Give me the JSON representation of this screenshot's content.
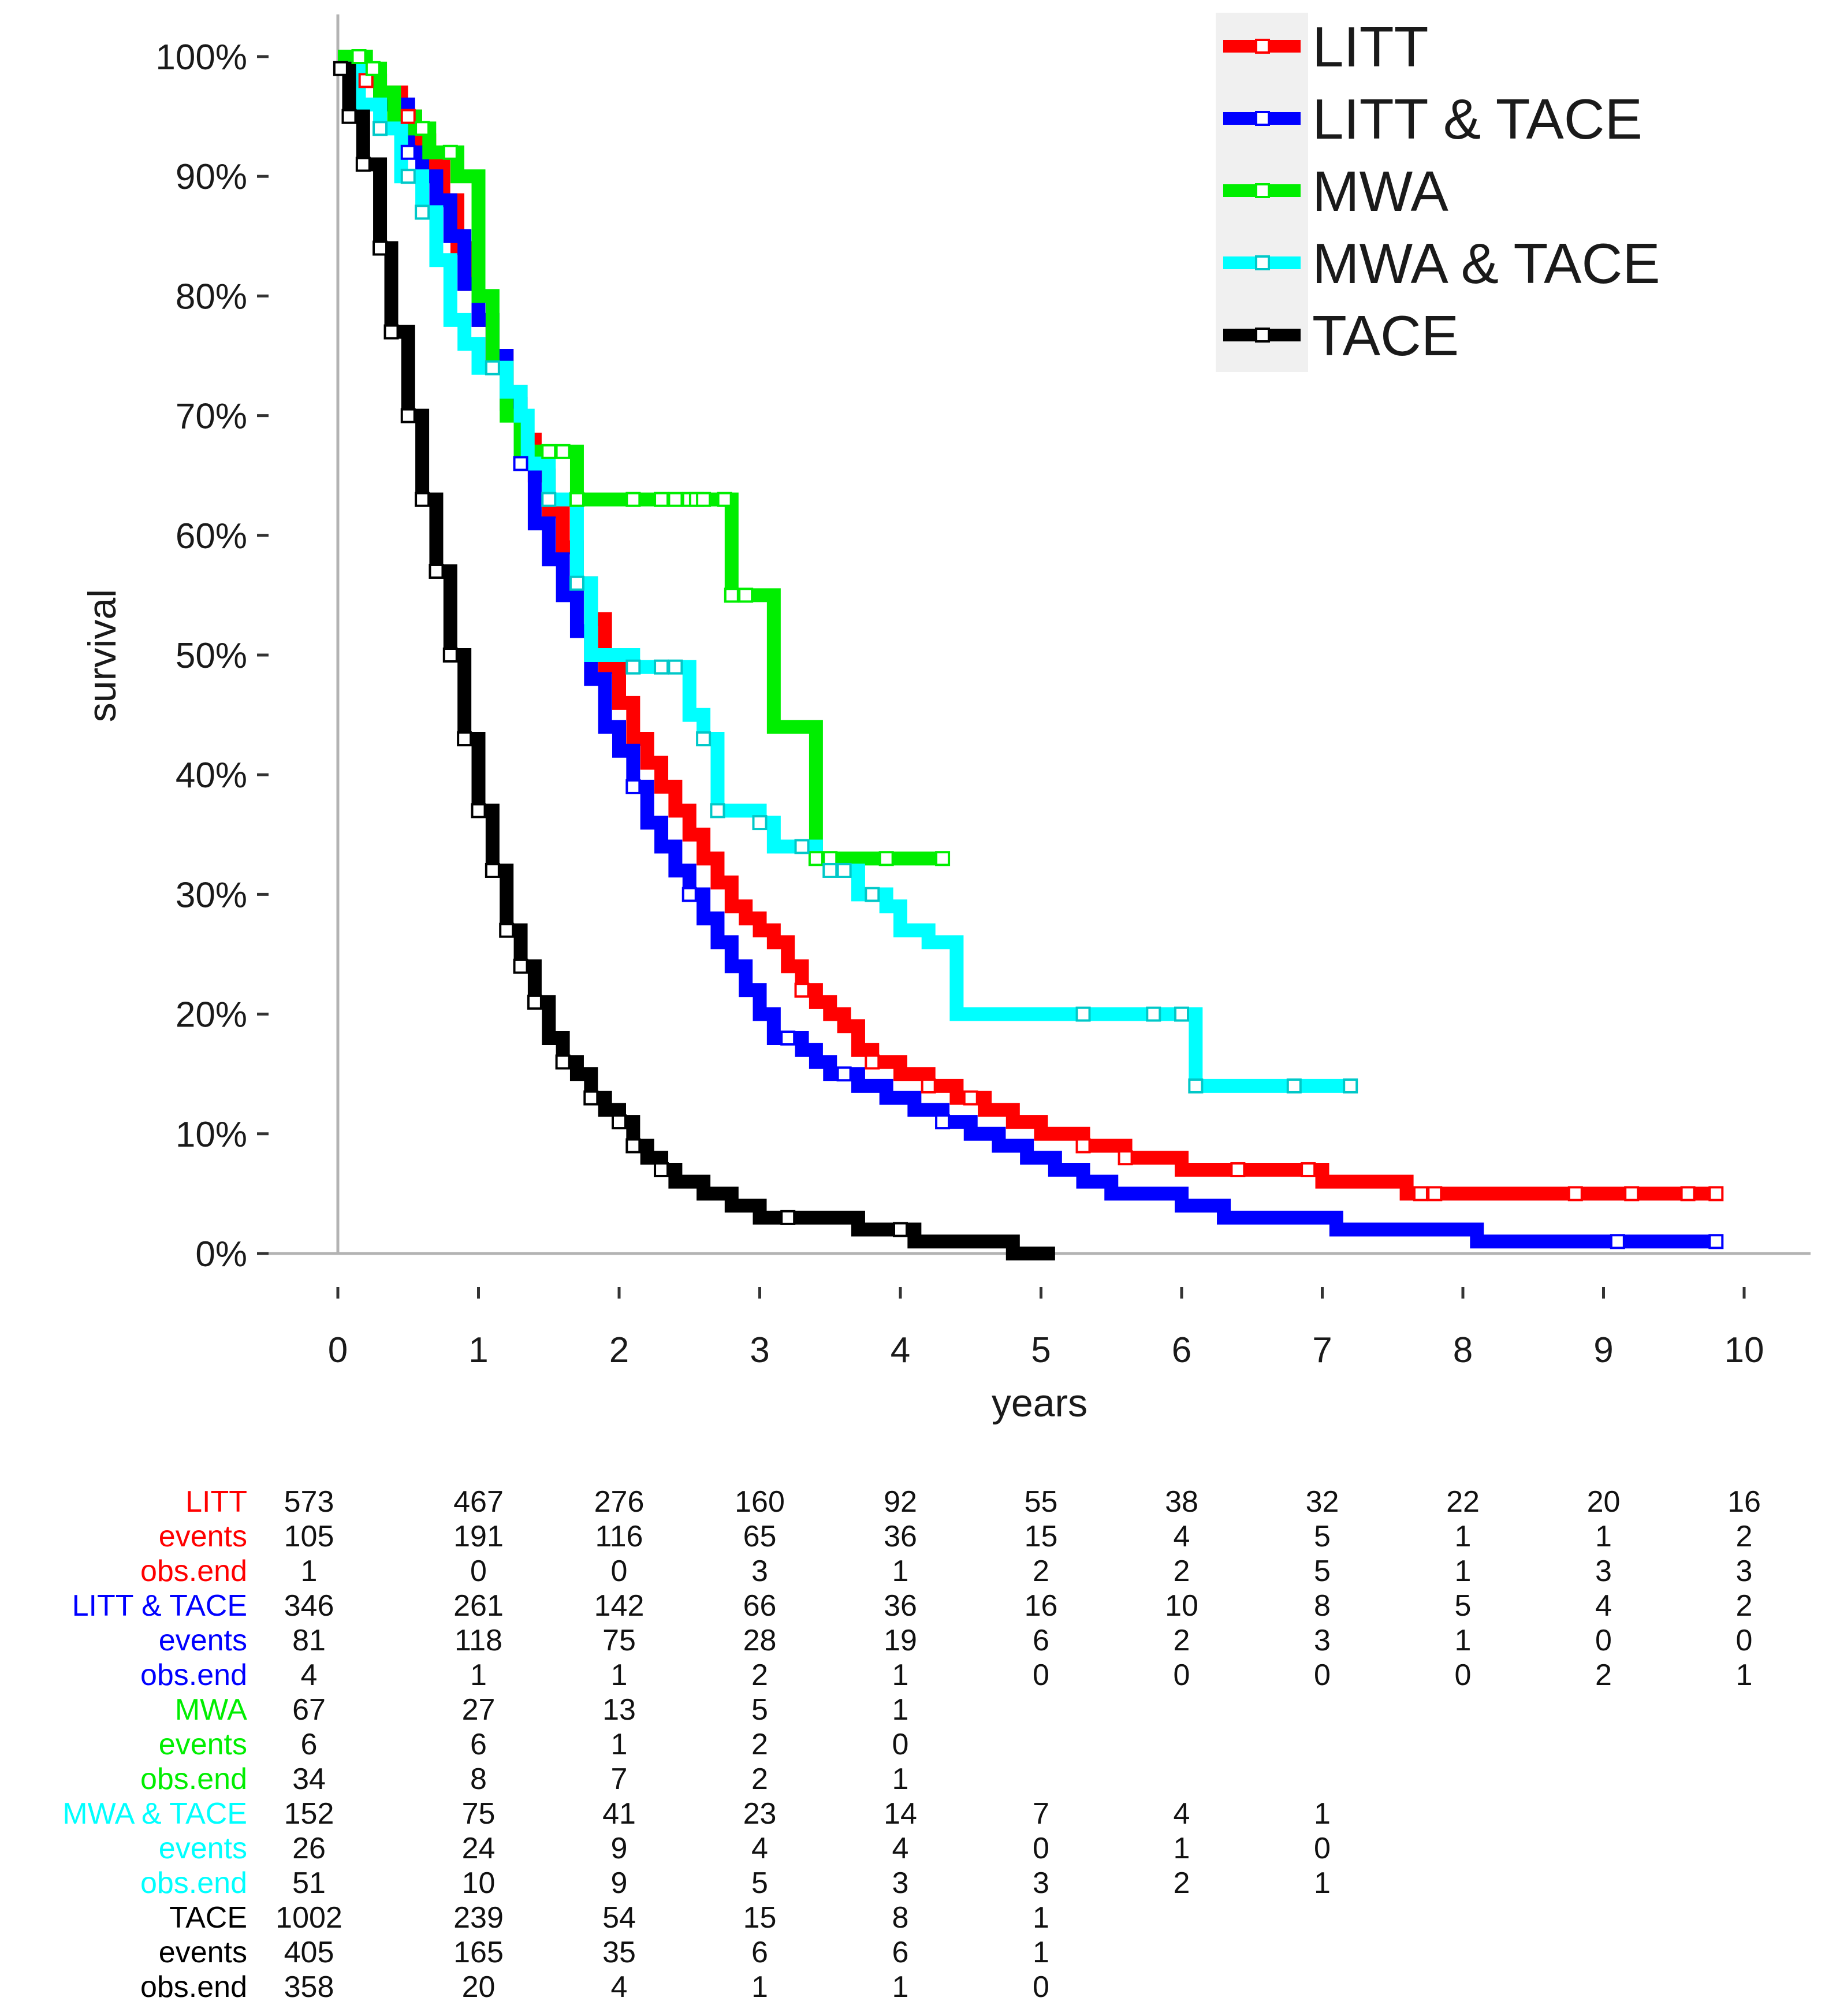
{
  "chart_data": {
    "type": "line",
    "subtype": "kaplan-meier step curves",
    "xlabel": "years",
    "ylabel": "survival",
    "xlim": [
      0,
      10
    ],
    "ylim": [
      0,
      100
    ],
    "x_ticks": [
      "0",
      "1",
      "2",
      "3",
      "4",
      "5",
      "6",
      "7",
      "8",
      "9",
      "10"
    ],
    "y_ticks": [
      "0%",
      "10%",
      "20%",
      "30%",
      "40%",
      "50%",
      "60%",
      "70%",
      "80%",
      "90%",
      "100%"
    ],
    "legend": {
      "position": "top-right",
      "entries": [
        "LITT",
        "LITT & TACE",
        "MWA",
        "MWA & TACE",
        "TACE"
      ]
    },
    "series": [
      {
        "name": "LITT",
        "color": "#ff0000",
        "steps": [
          [
            0,
            100
          ],
          [
            0.05,
            99
          ],
          [
            0.15,
            98
          ],
          [
            0.3,
            97
          ],
          [
            0.45,
            95
          ],
          [
            0.55,
            93
          ],
          [
            0.65,
            91
          ],
          [
            0.75,
            88
          ],
          [
            0.85,
            84
          ],
          [
            0.92,
            81
          ],
          [
            1.0,
            78
          ],
          [
            1.1,
            75
          ],
          [
            1.2,
            72
          ],
          [
            1.3,
            68
          ],
          [
            1.4,
            65
          ],
          [
            1.5,
            62
          ],
          [
            1.6,
            59
          ],
          [
            1.7,
            56
          ],
          [
            1.8,
            53
          ],
          [
            1.9,
            49
          ],
          [
            2.0,
            46
          ],
          [
            2.1,
            43
          ],
          [
            2.2,
            41
          ],
          [
            2.3,
            39
          ],
          [
            2.4,
            37
          ],
          [
            2.5,
            35
          ],
          [
            2.6,
            33
          ],
          [
            2.7,
            31
          ],
          [
            2.8,
            29
          ],
          [
            2.9,
            28
          ],
          [
            3.0,
            27
          ],
          [
            3.1,
            26
          ],
          [
            3.2,
            24
          ],
          [
            3.3,
            22
          ],
          [
            3.4,
            21
          ],
          [
            3.5,
            20
          ],
          [
            3.6,
            19
          ],
          [
            3.7,
            17
          ],
          [
            3.8,
            16
          ],
          [
            4.0,
            15
          ],
          [
            4.2,
            14
          ],
          [
            4.4,
            13
          ],
          [
            4.6,
            12
          ],
          [
            4.8,
            11
          ],
          [
            5.0,
            10
          ],
          [
            5.3,
            9
          ],
          [
            5.6,
            8
          ],
          [
            6.0,
            7
          ],
          [
            7.0,
            6
          ],
          [
            7.6,
            5
          ],
          [
            9.8,
            5
          ]
        ],
        "censor_x": [
          0.2,
          0.5,
          3.3,
          3.8,
          4.2,
          4.5,
          5.3,
          5.6,
          6.4,
          6.9,
          7.7,
          7.8,
          8.8,
          9.2,
          9.6,
          9.8
        ]
      },
      {
        "name": "LITT & TACE",
        "color": "#0000ff",
        "steps": [
          [
            0,
            100
          ],
          [
            0.1,
            98
          ],
          [
            0.3,
            96
          ],
          [
            0.5,
            92
          ],
          [
            0.6,
            90
          ],
          [
            0.7,
            88
          ],
          [
            0.8,
            85
          ],
          [
            0.9,
            81
          ],
          [
            1.0,
            78
          ],
          [
            1.1,
            75
          ],
          [
            1.2,
            71
          ],
          [
            1.3,
            66
          ],
          [
            1.4,
            61
          ],
          [
            1.5,
            58
          ],
          [
            1.6,
            55
          ],
          [
            1.7,
            52
          ],
          [
            1.8,
            48
          ],
          [
            1.9,
            44
          ],
          [
            2.0,
            42
          ],
          [
            2.1,
            39
          ],
          [
            2.2,
            36
          ],
          [
            2.3,
            34
          ],
          [
            2.4,
            32
          ],
          [
            2.5,
            30
          ],
          [
            2.6,
            28
          ],
          [
            2.7,
            26
          ],
          [
            2.8,
            24
          ],
          [
            2.9,
            22
          ],
          [
            3.0,
            20
          ],
          [
            3.1,
            18
          ],
          [
            3.3,
            17
          ],
          [
            3.4,
            16
          ],
          [
            3.5,
            15
          ],
          [
            3.7,
            14
          ],
          [
            3.9,
            13
          ],
          [
            4.1,
            12
          ],
          [
            4.3,
            11
          ],
          [
            4.5,
            10
          ],
          [
            4.7,
            9
          ],
          [
            4.9,
            8
          ],
          [
            5.1,
            7
          ],
          [
            5.3,
            6
          ],
          [
            5.5,
            5
          ],
          [
            6.0,
            4
          ],
          [
            6.3,
            3
          ],
          [
            7.1,
            2
          ],
          [
            8.1,
            1
          ],
          [
            9.8,
            1
          ]
        ],
        "censor_x": [
          0.5,
          1.3,
          2.1,
          2.5,
          3.2,
          3.6,
          4.3,
          9.1,
          9.8
        ]
      },
      {
        "name": "MWA",
        "color": "#00ee00",
        "steps": [
          [
            0,
            100
          ],
          [
            0.2,
            99
          ],
          [
            0.3,
            97
          ],
          [
            0.4,
            95
          ],
          [
            0.55,
            94
          ],
          [
            0.65,
            92
          ],
          [
            0.85,
            90
          ],
          [
            1.0,
            80
          ],
          [
            1.1,
            74
          ],
          [
            1.2,
            70
          ],
          [
            1.3,
            67
          ],
          [
            1.4,
            67
          ],
          [
            1.7,
            63
          ],
          [
            2.8,
            55
          ],
          [
            3.1,
            44
          ],
          [
            3.4,
            33
          ],
          [
            4.3,
            33
          ]
        ],
        "censor_x": [
          0.15,
          0.25,
          0.6,
          0.8,
          1.5,
          1.6,
          1.7,
          2.1,
          2.3,
          2.4,
          2.5,
          2.55,
          2.6,
          2.75,
          2.8,
          2.9,
          3.4,
          3.5,
          3.9,
          4.3
        ]
      },
      {
        "name": "MWA & TACE",
        "color": "#00ffff",
        "steps": [
          [
            0,
            99
          ],
          [
            0.15,
            96
          ],
          [
            0.3,
            94
          ],
          [
            0.45,
            90
          ],
          [
            0.6,
            87
          ],
          [
            0.7,
            83
          ],
          [
            0.8,
            78
          ],
          [
            0.9,
            76
          ],
          [
            1.0,
            74
          ],
          [
            1.2,
            72
          ],
          [
            1.3,
            70
          ],
          [
            1.35,
            66
          ],
          [
            1.5,
            63
          ],
          [
            1.7,
            56
          ],
          [
            1.8,
            50
          ],
          [
            2.1,
            49
          ],
          [
            2.5,
            45
          ],
          [
            2.6,
            43
          ],
          [
            2.7,
            37
          ],
          [
            3.0,
            36
          ],
          [
            3.1,
            34
          ],
          [
            3.4,
            33
          ],
          [
            3.5,
            32
          ],
          [
            3.7,
            30
          ],
          [
            3.9,
            29
          ],
          [
            4.0,
            27
          ],
          [
            4.2,
            26
          ],
          [
            4.4,
            20
          ],
          [
            6.1,
            14
          ],
          [
            7.2,
            14
          ]
        ],
        "censor_x": [
          0.3,
          0.5,
          0.6,
          1.1,
          1.5,
          1.7,
          2.1,
          2.3,
          2.4,
          2.6,
          2.7,
          3.0,
          3.3,
          3.5,
          3.6,
          3.8,
          5.3,
          5.8,
          6.0,
          6.1,
          6.8,
          7.2
        ]
      },
      {
        "name": "TACE",
        "color": "#000000",
        "steps": [
          [
            0,
            99
          ],
          [
            0.08,
            95
          ],
          [
            0.18,
            91
          ],
          [
            0.3,
            84
          ],
          [
            0.38,
            77
          ],
          [
            0.5,
            70
          ],
          [
            0.6,
            63
          ],
          [
            0.7,
            57
          ],
          [
            0.8,
            50
          ],
          [
            0.9,
            43
          ],
          [
            1.0,
            37
          ],
          [
            1.1,
            32
          ],
          [
            1.2,
            27
          ],
          [
            1.3,
            24
          ],
          [
            1.4,
            21
          ],
          [
            1.5,
            18
          ],
          [
            1.6,
            16
          ],
          [
            1.7,
            15
          ],
          [
            1.8,
            13
          ],
          [
            1.9,
            12
          ],
          [
            2.0,
            11
          ],
          [
            2.1,
            9
          ],
          [
            2.2,
            8
          ],
          [
            2.3,
            7
          ],
          [
            2.4,
            6
          ],
          [
            2.6,
            5
          ],
          [
            2.8,
            4
          ],
          [
            3.0,
            3
          ],
          [
            3.7,
            2
          ],
          [
            4.1,
            1
          ],
          [
            4.8,
            0
          ],
          [
            5.1,
            0
          ]
        ],
        "censor_x": [
          0.02,
          0.08,
          0.18,
          0.3,
          0.38,
          0.5,
          0.6,
          0.7,
          0.8,
          0.9,
          1.0,
          1.1,
          1.2,
          1.3,
          1.4,
          1.6,
          1.8,
          2.0,
          2.1,
          2.3,
          3.2,
          4.0
        ]
      }
    ],
    "risk_table": {
      "time_points": [
        0,
        1,
        2,
        3,
        4,
        5,
        6,
        7,
        8,
        9,
        10
      ],
      "rows": [
        {
          "label": "LITT",
          "color": "#ff0000",
          "values": [
            "573",
            "467",
            "276",
            "160",
            "92",
            "55",
            "38",
            "32",
            "22",
            "20",
            "16"
          ]
        },
        {
          "label": "events",
          "color": "#ff0000",
          "values": [
            "105",
            "191",
            "116",
            "65",
            "36",
            "15",
            "4",
            "5",
            "1",
            "1",
            "2"
          ]
        },
        {
          "label": "obs.end",
          "color": "#ff0000",
          "values": [
            "1",
            "0",
            "0",
            "3",
            "1",
            "2",
            "2",
            "5",
            "1",
            "3",
            "3"
          ]
        },
        {
          "label": "LITT & TACE",
          "color": "#0000ff",
          "values": [
            "346",
            "261",
            "142",
            "66",
            "36",
            "16",
            "10",
            "8",
            "5",
            "4",
            "2"
          ]
        },
        {
          "label": "events",
          "color": "#0000ff",
          "values": [
            "81",
            "118",
            "75",
            "28",
            "19",
            "6",
            "2",
            "3",
            "1",
            "0",
            "0"
          ]
        },
        {
          "label": "obs.end",
          "color": "#0000ff",
          "values": [
            "4",
            "1",
            "1",
            "2",
            "1",
            "0",
            "0",
            "0",
            "0",
            "2",
            "1"
          ]
        },
        {
          "label": "MWA",
          "color": "#00ee00",
          "values": [
            "67",
            "27",
            "13",
            "5",
            "1"
          ]
        },
        {
          "label": "events",
          "color": "#00ee00",
          "values": [
            "6",
            "6",
            "1",
            "2",
            "0"
          ]
        },
        {
          "label": "obs.end",
          "color": "#00ee00",
          "values": [
            "34",
            "8",
            "7",
            "2",
            "1"
          ]
        },
        {
          "label": "MWA & TACE",
          "color": "#00ffff",
          "values": [
            "152",
            "75",
            "41",
            "23",
            "14",
            "7",
            "4",
            "1"
          ]
        },
        {
          "label": "events",
          "color": "#00ffff",
          "values": [
            "26",
            "24",
            "9",
            "4",
            "4",
            "0",
            "1",
            "0"
          ]
        },
        {
          "label": "obs.end",
          "color": "#00ffff",
          "values": [
            "51",
            "10",
            "9",
            "5",
            "3",
            "3",
            "2",
            "1"
          ]
        },
        {
          "label": "TACE",
          "color": "#000000",
          "values": [
            "1002",
            "239",
            "54",
            "15",
            "8",
            "1"
          ]
        },
        {
          "label": "events",
          "color": "#000000",
          "values": [
            "405",
            "165",
            "35",
            "6",
            "6",
            "1"
          ]
        },
        {
          "label": "obs.end",
          "color": "#000000",
          "values": [
            "358",
            "20",
            "4",
            "1",
            "1",
            "0"
          ]
        }
      ]
    }
  }
}
